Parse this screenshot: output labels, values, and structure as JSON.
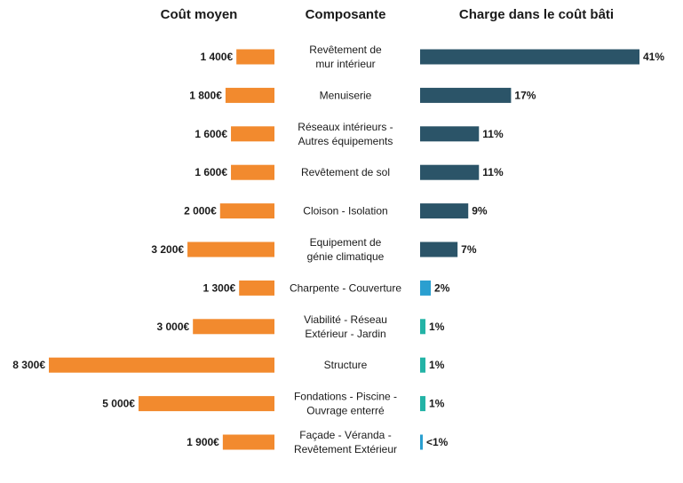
{
  "headers": {
    "cost": "Coût moyen",
    "component": "Composante",
    "share": "Charge dans le coût bâti"
  },
  "colors": {
    "cost_bar": "#f28a2e",
    "share_dark": "#2b5468",
    "share_blue": "#2a9fd0",
    "share_teal": "#23b3a6",
    "text": "#1a1a1a"
  },
  "chart_data": {
    "type": "bar",
    "orientation": "horizontal",
    "layout": "butterfly",
    "categories": [
      "Revêtement de mur intérieur",
      "Menuiserie",
      "Réseaux intérieurs - Autres équipements",
      "Revêtement de sol",
      "Cloison - Isolation",
      "Equipement de génie climatique",
      "Charpente - Couverture",
      "Viabilité - Réseau Extérieur - Jardin",
      "Structure",
      "Fondations - Piscine - Ouvrage enterré",
      "Façade - Véranda - Revêtement Extérieur"
    ],
    "category_lines": [
      [
        "Revêtement de",
        "mur intérieur"
      ],
      [
        "Menuiserie"
      ],
      [
        "Réseaux intérieurs -",
        "Autres équipements"
      ],
      [
        "Revêtement de sol"
      ],
      [
        "Cloison - Isolation"
      ],
      [
        "Equipement de",
        "génie climatique"
      ],
      [
        "Charpente - Couverture"
      ],
      [
        "Viabilité - Réseau",
        "Extérieur - Jardin"
      ],
      [
        "Structure"
      ],
      [
        "Fondations - Piscine -",
        "Ouvrage enterré"
      ],
      [
        "Façade - Véranda -",
        "Revêtement Extérieur"
      ]
    ],
    "series": [
      {
        "name": "Coût moyen",
        "unit": "€",
        "values": [
          1400,
          1800,
          1600,
          1600,
          2000,
          3200,
          1300,
          3000,
          8300,
          5000,
          1900
        ],
        "labels": [
          "1 400€",
          "1 800€",
          "1 600€",
          "1 600€",
          "2 000€",
          "3 200€",
          "1 300€",
          "3 000€",
          "8 300€",
          "5 000€",
          "1 900€"
        ]
      },
      {
        "name": "Charge dans le coût bâti",
        "unit": "%",
        "values": [
          41,
          17,
          11,
          11,
          9,
          7,
          2,
          1,
          1,
          1,
          0.4
        ],
        "labels": [
          "41%",
          "17%",
          "11%",
          "11%",
          "9%",
          "7%",
          "2%",
          "1%",
          "1%",
          "1%",
          "<1%"
        ],
        "bar_colors": [
          "share_dark",
          "share_dark",
          "share_dark",
          "share_dark",
          "share_dark",
          "share_dark",
          "share_blue",
          "share_teal",
          "share_teal",
          "share_teal",
          "share_blue"
        ]
      }
    ],
    "grid": false,
    "legend": "none"
  }
}
